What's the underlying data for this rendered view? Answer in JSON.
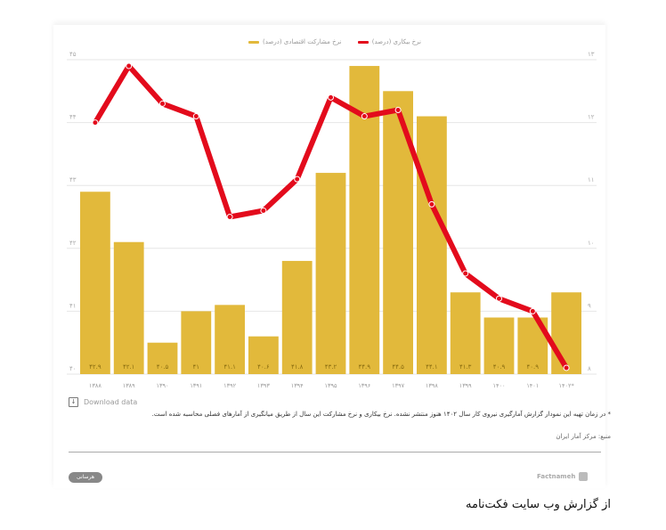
{
  "legend": {
    "unemployment": "نرخ بیکاری (درصد)",
    "participation": "نرخ مشارکت اقتصادی (درصد)"
  },
  "colors": {
    "bar": "#E2B93B",
    "line": "#E30B1C"
  },
  "download_label": "Download data",
  "note": "* در زمان تهیه این نمودار گزارش آمارگیری نیروی کار سال ۱۴۰۲ هنوز منتشر نشده. نرخ بیکاری و نرخ مشارکت این سال از طریق میانگیری از آمارهای فصلی محاسبه شده است.",
  "source": "منبع: مرکز آمار ایران",
  "badge": "هرسانی",
  "brand": "Factnameh",
  "caption": "از گزارش وب سایت فکت‌نامه",
  "chart_data": {
    "type": "bar",
    "title": "",
    "categories": [
      "۱۳۸۸",
      "۱۳۸۹",
      "۱۳۹۰",
      "۱۳۹۱",
      "۱۳۹۲",
      "۱۳۹۳",
      "۱۳۹۴",
      "۱۳۹۵",
      "۱۳۹۶",
      "۱۳۹۷",
      "۱۳۹۸",
      "۱۳۹۹",
      "۱۴۰۰",
      "۱۴۰۱",
      "۱۴۰۲*"
    ],
    "series": [
      {
        "name": "نرخ مشارکت اقتصادی (درصد)",
        "type": "bar",
        "axis": "left",
        "values": [
          42.9,
          42.1,
          40.5,
          41,
          41.1,
          40.6,
          41.8,
          43.2,
          44.9,
          44.5,
          44.1,
          41.3,
          40.9,
          40.9,
          41.3
        ],
        "labels": [
          "۴۲.۹",
          "۴۲.۱",
          "۴۰.۵",
          "۴۱",
          "۴۱.۱",
          "۴۰.۶",
          "۴۱.۸",
          "۴۳.۲",
          "۴۴.۹",
          "۴۴.۵",
          "۴۴.۱",
          "۴۱.۳",
          "۴۰.۹",
          "۴۰.۹",
          ""
        ]
      },
      {
        "name": "نرخ بیکاری (درصد)",
        "type": "line",
        "axis": "right",
        "values": [
          12.0,
          12.9,
          12.3,
          12.1,
          10.5,
          10.6,
          11.1,
          12.4,
          12.1,
          12.2,
          10.7,
          9.6,
          9.2,
          9.0,
          8.1
        ]
      }
    ],
    "left_axis": {
      "range": [
        40,
        45
      ],
      "ticks": [
        "۴۰",
        "۴۱",
        "۴۲",
        "۴۳",
        "۴۴",
        "۴۵"
      ]
    },
    "right_axis": {
      "range": [
        8,
        13
      ],
      "ticks": [
        "۸",
        "۹",
        "۱۰",
        "۱۱",
        "۱۲",
        "۱۳"
      ]
    },
    "grid": true,
    "legend_position": "top"
  }
}
